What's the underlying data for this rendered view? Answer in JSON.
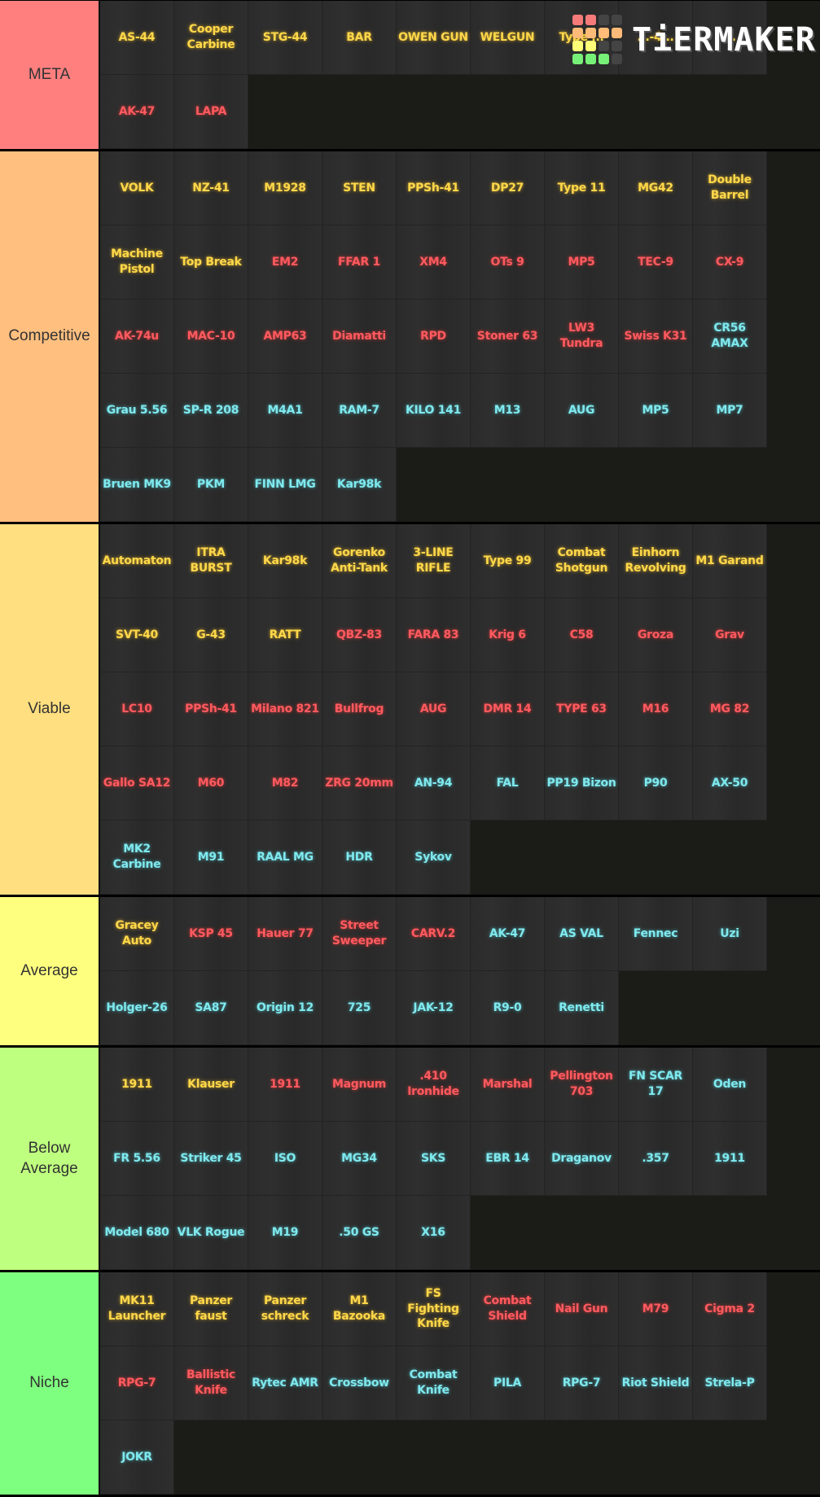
{
  "branding": {
    "logo_text": "TiERMAKER",
    "logo_grid": [
      "#f57a7a",
      "#f57a7a",
      "#444",
      "#444",
      "#ffbb77",
      "#ffbb77",
      "#ffbb77",
      "#ffbb77",
      "#ffff77",
      "#ffff77",
      "#444",
      "#444",
      "#77f077",
      "#77f077",
      "#77f077",
      "#444"
    ]
  },
  "legend_colors": {
    "gold": "#ffd84a",
    "red": "#ff5a5f",
    "cyan": "#7fe9ee"
  },
  "tiers": [
    {
      "label": "META",
      "color": "#ff7f7f",
      "items": [
        {
          "name": "AS-44",
          "c": "gold"
        },
        {
          "name": "Cooper Carbine",
          "c": "gold"
        },
        {
          "name": "STG-44",
          "c": "gold"
        },
        {
          "name": "BAR",
          "c": "gold"
        },
        {
          "name": "OWEN GUN",
          "c": "gold"
        },
        {
          "name": "WELGUN",
          "c": "gold"
        },
        {
          "name": "Type ...",
          "c": "gold"
        },
        {
          "name": "...-4...",
          "c": "gold"
        },
        {
          "name": "...",
          "c": "gold"
        },
        {
          "name": "AK-47",
          "c": "red"
        },
        {
          "name": "LAPA",
          "c": "red"
        }
      ]
    },
    {
      "label": "Competitive",
      "color": "#ffbf7f",
      "items": [
        {
          "name": "VOLK",
          "c": "gold"
        },
        {
          "name": "NZ-41",
          "c": "gold"
        },
        {
          "name": "M1928",
          "c": "gold"
        },
        {
          "name": "STEN",
          "c": "gold"
        },
        {
          "name": "PPSh-41",
          "c": "gold"
        },
        {
          "name": "DP27",
          "c": "gold"
        },
        {
          "name": "Type 11",
          "c": "gold"
        },
        {
          "name": "MG42",
          "c": "gold"
        },
        {
          "name": "Double Barrel",
          "c": "gold"
        },
        {
          "name": "Machine Pistol",
          "c": "gold"
        },
        {
          "name": "Top Break",
          "c": "gold"
        },
        {
          "name": "EM2",
          "c": "red"
        },
        {
          "name": "FFAR 1",
          "c": "red"
        },
        {
          "name": "XM4",
          "c": "red"
        },
        {
          "name": "OTs 9",
          "c": "red"
        },
        {
          "name": "MP5",
          "c": "red"
        },
        {
          "name": "TEC-9",
          "c": "red"
        },
        {
          "name": "CX-9",
          "c": "red"
        },
        {
          "name": "AK-74u",
          "c": "red"
        },
        {
          "name": "MAC-10",
          "c": "red"
        },
        {
          "name": "AMP63",
          "c": "red"
        },
        {
          "name": "Diamatti",
          "c": "red"
        },
        {
          "name": "RPD",
          "c": "red"
        },
        {
          "name": "Stoner 63",
          "c": "red"
        },
        {
          "name": "LW3 Tundra",
          "c": "red"
        },
        {
          "name": "Swiss K31",
          "c": "red"
        },
        {
          "name": "CR56 AMAX",
          "c": "cyan"
        },
        {
          "name": "Grau 5.56",
          "c": "cyan"
        },
        {
          "name": "SP-R 208",
          "c": "cyan"
        },
        {
          "name": "M4A1",
          "c": "cyan"
        },
        {
          "name": "RAM-7",
          "c": "cyan"
        },
        {
          "name": "KILO 141",
          "c": "cyan"
        },
        {
          "name": "M13",
          "c": "cyan"
        },
        {
          "name": "AUG",
          "c": "cyan"
        },
        {
          "name": "MP5",
          "c": "cyan"
        },
        {
          "name": "MP7",
          "c": "cyan"
        },
        {
          "name": "Bruen MK9",
          "c": "cyan"
        },
        {
          "name": "PKM",
          "c": "cyan"
        },
        {
          "name": "FINN LMG",
          "c": "cyan"
        },
        {
          "name": "Kar98k",
          "c": "cyan"
        }
      ]
    },
    {
      "label": "Viable",
      "color": "#ffdf7f",
      "items": [
        {
          "name": "Automaton",
          "c": "gold"
        },
        {
          "name": "ITRA BURST",
          "c": "gold"
        },
        {
          "name": "Kar98k",
          "c": "gold"
        },
        {
          "name": "Gorenko Anti-Tank",
          "c": "gold"
        },
        {
          "name": "3-LINE RIFLE",
          "c": "gold"
        },
        {
          "name": "Type 99",
          "c": "gold"
        },
        {
          "name": "Combat Shotgun",
          "c": "gold"
        },
        {
          "name": "Einhorn Revolving",
          "c": "gold"
        },
        {
          "name": "M1 Garand",
          "c": "gold"
        },
        {
          "name": "SVT-40",
          "c": "gold"
        },
        {
          "name": "G-43",
          "c": "gold"
        },
        {
          "name": "RATT",
          "c": "gold"
        },
        {
          "name": "QBZ-83",
          "c": "red"
        },
        {
          "name": "FARA 83",
          "c": "red"
        },
        {
          "name": "Krig 6",
          "c": "red"
        },
        {
          "name": "C58",
          "c": "red"
        },
        {
          "name": "Groza",
          "c": "red"
        },
        {
          "name": "Grav",
          "c": "red"
        },
        {
          "name": "LC10",
          "c": "red"
        },
        {
          "name": "PPSh-41",
          "c": "red"
        },
        {
          "name": "Milano 821",
          "c": "red"
        },
        {
          "name": "Bullfrog",
          "c": "red"
        },
        {
          "name": "AUG",
          "c": "red"
        },
        {
          "name": "DMR 14",
          "c": "red"
        },
        {
          "name": "TYPE 63",
          "c": "red"
        },
        {
          "name": "M16",
          "c": "red"
        },
        {
          "name": "MG 82",
          "c": "red"
        },
        {
          "name": "Gallo SA12",
          "c": "red"
        },
        {
          "name": "M60",
          "c": "red"
        },
        {
          "name": "M82",
          "c": "red"
        },
        {
          "name": "ZRG 20mm",
          "c": "red"
        },
        {
          "name": "AN-94",
          "c": "cyan"
        },
        {
          "name": "FAL",
          "c": "cyan"
        },
        {
          "name": "PP19 Bizon",
          "c": "cyan"
        },
        {
          "name": "P90",
          "c": "cyan"
        },
        {
          "name": "AX-50",
          "c": "cyan"
        },
        {
          "name": "MK2 Carbine",
          "c": "cyan"
        },
        {
          "name": "M91",
          "c": "cyan"
        },
        {
          "name": "RAAL MG",
          "c": "cyan"
        },
        {
          "name": "HDR",
          "c": "cyan"
        },
        {
          "name": "Sykov",
          "c": "cyan"
        }
      ]
    },
    {
      "label": "Average",
      "color": "#ffff7f",
      "items": [
        {
          "name": "Gracey Auto",
          "c": "gold"
        },
        {
          "name": "KSP 45",
          "c": "red"
        },
        {
          "name": "Hauer 77",
          "c": "red"
        },
        {
          "name": "Street Sweeper",
          "c": "red"
        },
        {
          "name": "CARV.2",
          "c": "red"
        },
        {
          "name": "AK-47",
          "c": "cyan"
        },
        {
          "name": "AS VAL",
          "c": "cyan"
        },
        {
          "name": "Fennec",
          "c": "cyan"
        },
        {
          "name": "Uzi",
          "c": "cyan"
        },
        {
          "name": "Holger-26",
          "c": "cyan"
        },
        {
          "name": "SA87",
          "c": "cyan"
        },
        {
          "name": "Origin 12",
          "c": "cyan"
        },
        {
          "name": "725",
          "c": "cyan"
        },
        {
          "name": "JAK-12",
          "c": "cyan"
        },
        {
          "name": "R9-0",
          "c": "cyan"
        },
        {
          "name": "Renetti",
          "c": "cyan"
        }
      ]
    },
    {
      "label": "Below Average",
      "color": "#bfff7f",
      "items": [
        {
          "name": "1911",
          "c": "gold"
        },
        {
          "name": "Klauser",
          "c": "gold"
        },
        {
          "name": "1911",
          "c": "red"
        },
        {
          "name": "Magnum",
          "c": "red"
        },
        {
          "name": ".410 Ironhide",
          "c": "red"
        },
        {
          "name": "Marshal",
          "c": "red"
        },
        {
          "name": "Pellington 703",
          "c": "red"
        },
        {
          "name": "FN SCAR 17",
          "c": "cyan"
        },
        {
          "name": "Oden",
          "c": "cyan"
        },
        {
          "name": "FR 5.56",
          "c": "cyan"
        },
        {
          "name": "Striker 45",
          "c": "cyan"
        },
        {
          "name": "ISO",
          "c": "cyan"
        },
        {
          "name": "MG34",
          "c": "cyan"
        },
        {
          "name": "SKS",
          "c": "cyan"
        },
        {
          "name": "EBR 14",
          "c": "cyan"
        },
        {
          "name": "Draganov",
          "c": "cyan"
        },
        {
          "name": ".357",
          "c": "cyan"
        },
        {
          "name": "1911",
          "c": "cyan"
        },
        {
          "name": "Model 680",
          "c": "cyan"
        },
        {
          "name": "VLK Rogue",
          "c": "cyan"
        },
        {
          "name": "M19",
          "c": "cyan"
        },
        {
          "name": ".50 GS",
          "c": "cyan"
        },
        {
          "name": "X16",
          "c": "cyan"
        }
      ]
    },
    {
      "label": "Niche",
      "color": "#7fff7f",
      "items": [
        {
          "name": "MK11 Launcher",
          "c": "gold"
        },
        {
          "name": "Panzer faust",
          "c": "gold"
        },
        {
          "name": "Panzer schreck",
          "c": "gold"
        },
        {
          "name": "M1 Bazooka",
          "c": "gold"
        },
        {
          "name": "FS Fighting Knife",
          "c": "gold"
        },
        {
          "name": "Combat Shield",
          "c": "red"
        },
        {
          "name": "Nail Gun",
          "c": "red"
        },
        {
          "name": "M79",
          "c": "red"
        },
        {
          "name": "Cigma 2",
          "c": "red"
        },
        {
          "name": "RPG-7",
          "c": "red"
        },
        {
          "name": "Ballistic Knife",
          "c": "red"
        },
        {
          "name": "Rytec AMR",
          "c": "cyan"
        },
        {
          "name": "Crossbow",
          "c": "cyan"
        },
        {
          "name": "Combat Knife",
          "c": "cyan"
        },
        {
          "name": "PILA",
          "c": "cyan"
        },
        {
          "name": "RPG-7",
          "c": "cyan"
        },
        {
          "name": "Riot Shield",
          "c": "cyan"
        },
        {
          "name": "Strela-P",
          "c": "cyan"
        },
        {
          "name": "JOKR",
          "c": "cyan"
        }
      ]
    }
  ]
}
